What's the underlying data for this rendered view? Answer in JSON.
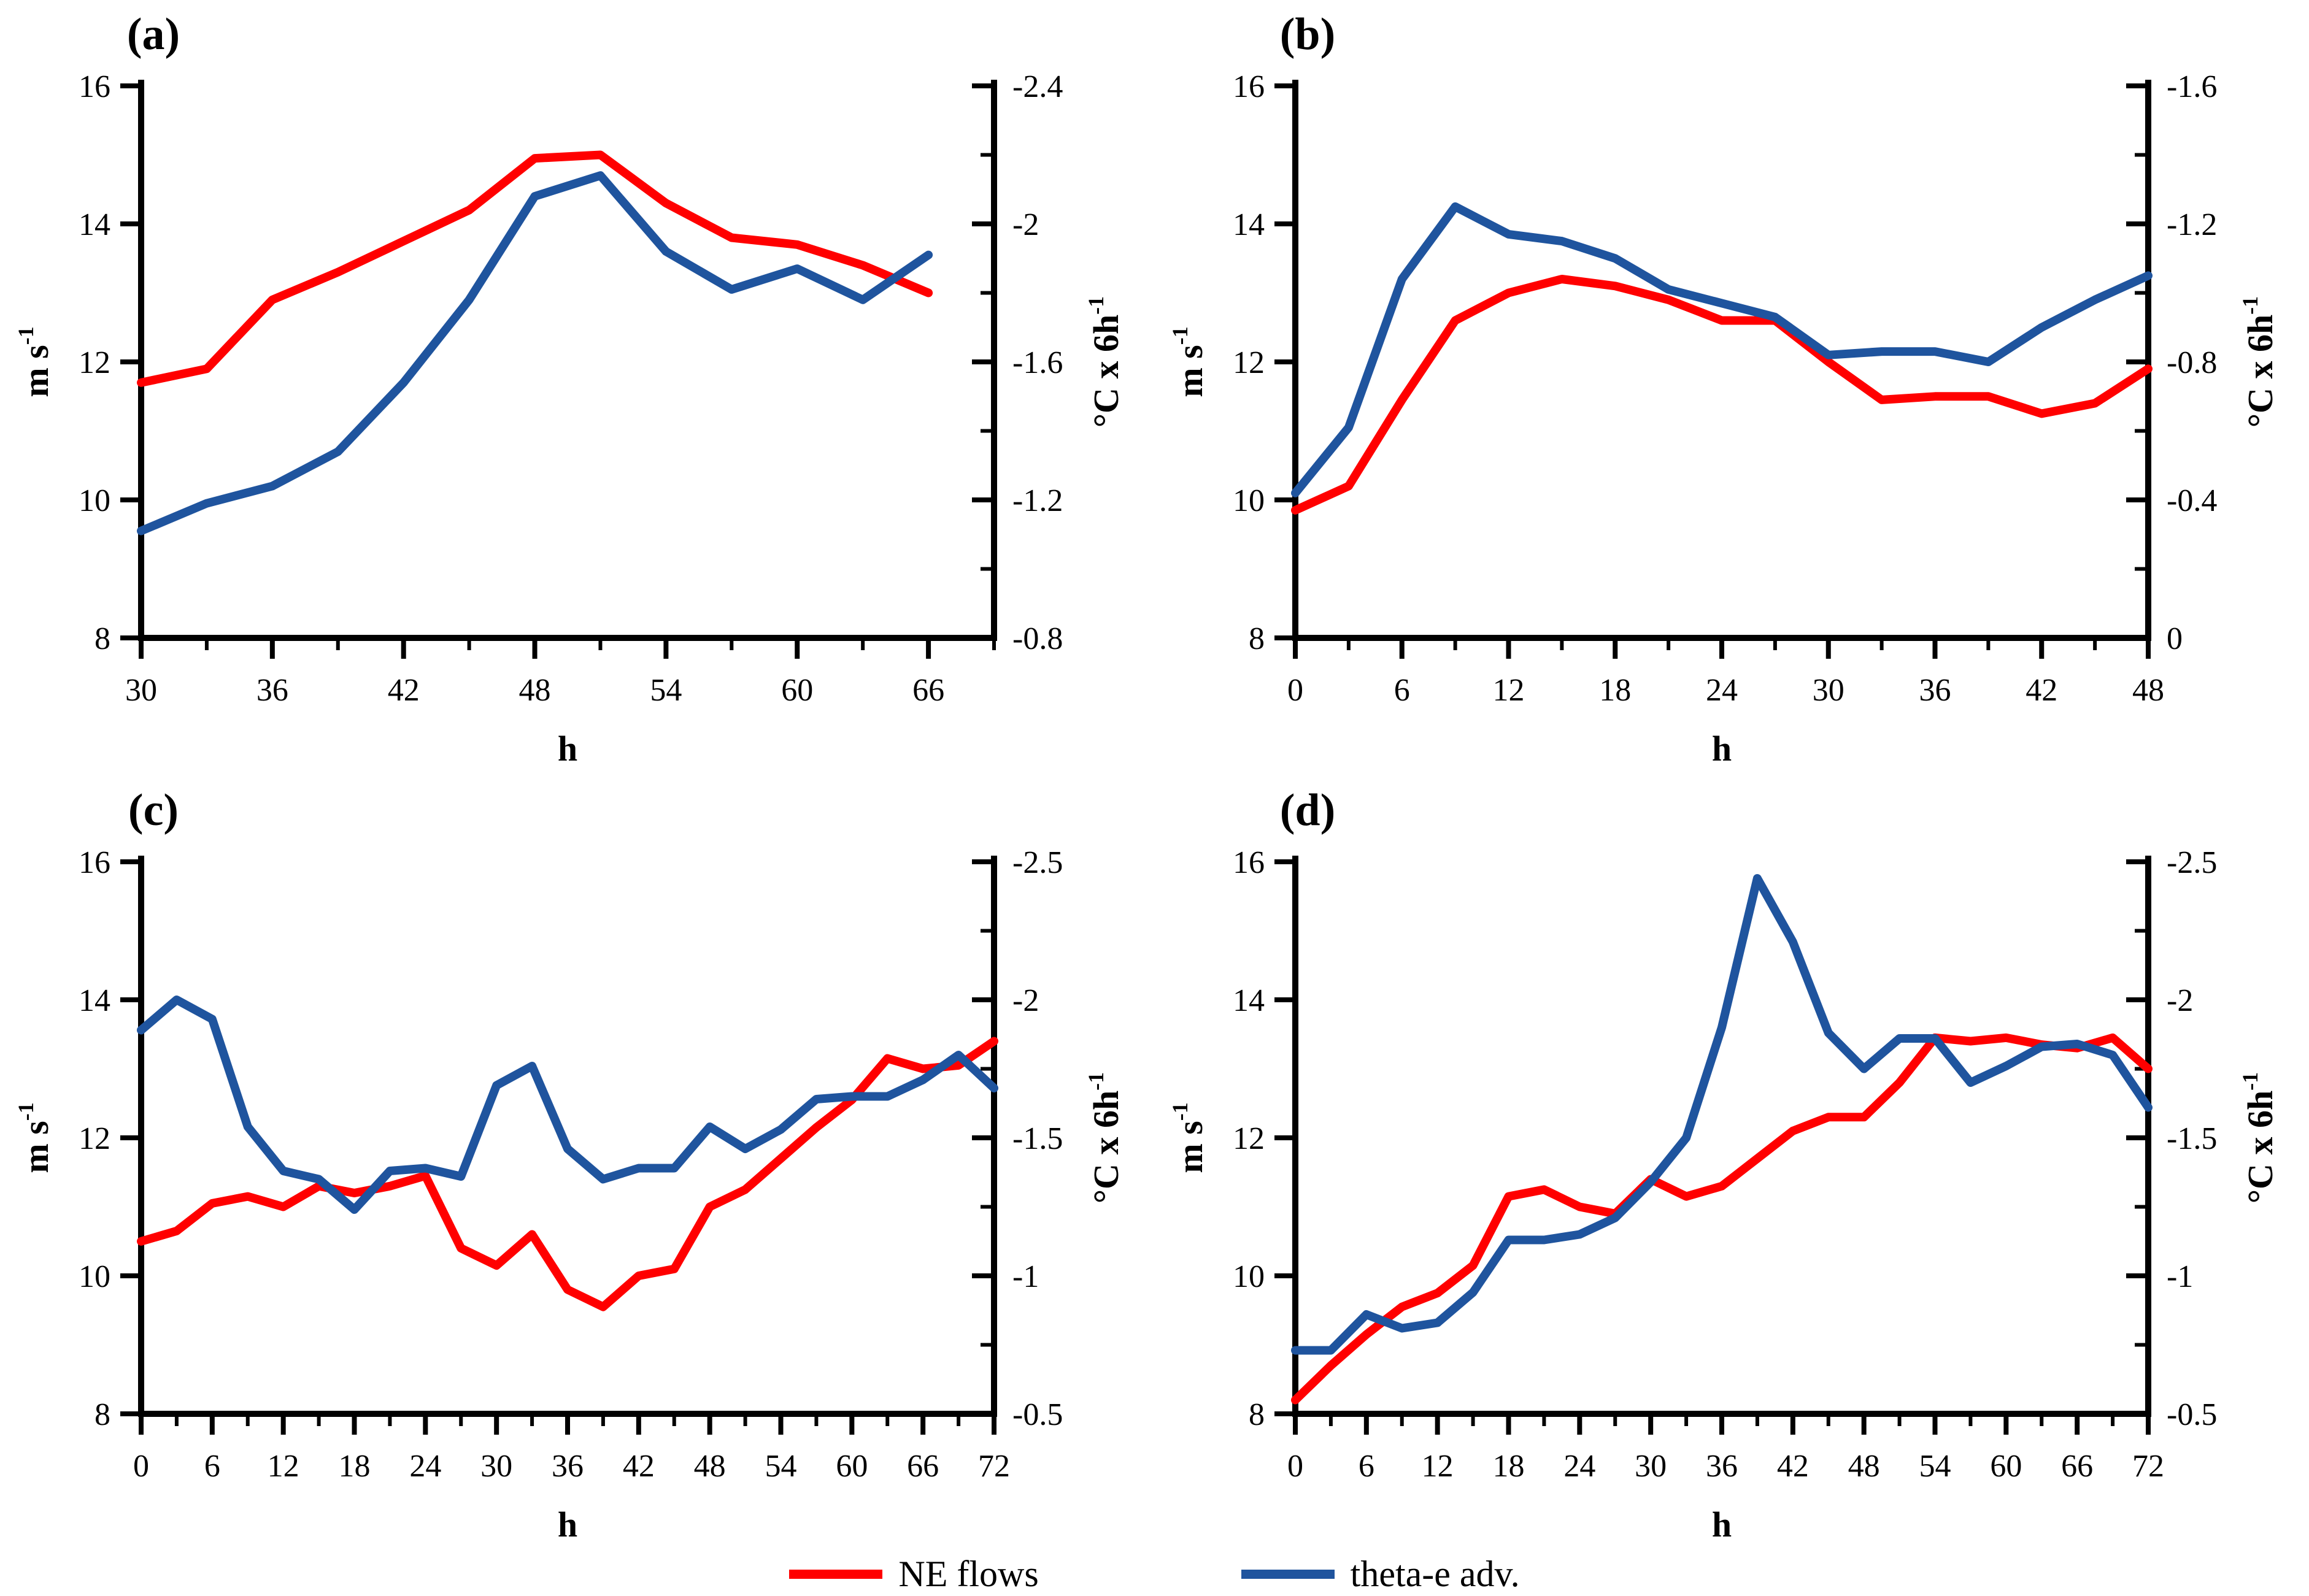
{
  "figure": {
    "colors": {
      "red": "#FF0000",
      "blue": "#1F549E",
      "axis": "#000000"
    },
    "legend": [
      {
        "label": "NE flows",
        "color_key": "red"
      },
      {
        "label": "theta-e adv.",
        "color_key": "blue"
      }
    ]
  },
  "chart_data": [
    {
      "type": "line",
      "panel_label": "(a)",
      "xlabel": "h",
      "x_domain": [
        30,
        69
      ],
      "x": [
        30,
        33,
        36,
        39,
        42,
        45,
        48,
        51,
        54,
        57,
        60,
        63,
        66
      ],
      "x_ticks": {
        "values": [
          30,
          36,
          42,
          48,
          54,
          60,
          66
        ],
        "labels": [
          "30",
          "36",
          "42",
          "48",
          "54",
          "60",
          "66"
        ]
      },
      "left_axis": {
        "label": "m s^-1",
        "domain": [
          8,
          16
        ],
        "ticks": [
          8,
          10,
          12,
          14,
          16
        ],
        "labels": [
          "8",
          "10",
          "12",
          "14",
          "16"
        ]
      },
      "right_axis": {
        "label": "°C x 6h^-1",
        "domain_bottom": -0.8,
        "domain_top": -2.4,
        "ticks": [
          -0.8,
          -1.2,
          -1.6,
          -2,
          -2.4
        ],
        "labels": [
          "-0.8",
          "-1.2",
          "-1.6",
          "-2",
          "-2.4"
        ]
      },
      "series": [
        {
          "name": "NE flows",
          "axis": "left",
          "color_key": "red",
          "values": [
            11.7,
            11.9,
            12.9,
            13.3,
            13.75,
            14.2,
            14.95,
            15.0,
            14.3,
            13.8,
            13.7,
            13.4,
            13.0
          ]
        },
        {
          "name": "theta-e adv.",
          "axis": "right",
          "color_key": "blue",
          "values": [
            -1.11,
            -1.19,
            -1.24,
            -1.34,
            -1.54,
            -1.78,
            -2.08,
            -2.14,
            -1.92,
            -1.81,
            -1.87,
            -1.78,
            -1.91
          ]
        }
      ]
    },
    {
      "type": "line",
      "panel_label": "(b)",
      "xlabel": "h",
      "x_domain": [
        0,
        48
      ],
      "x": [
        0,
        3,
        6,
        9,
        12,
        15,
        18,
        21,
        24,
        27,
        30,
        33,
        36,
        39,
        42,
        45,
        48
      ],
      "x_ticks": {
        "values": [
          0,
          6,
          12,
          18,
          24,
          30,
          36,
          42,
          48
        ],
        "labels": [
          "0",
          "6",
          "12",
          "18",
          "24",
          "30",
          "36",
          "42",
          "48"
        ]
      },
      "left_axis": {
        "label": "m s^-1",
        "domain": [
          8,
          16
        ],
        "ticks": [
          8,
          10,
          12,
          14,
          16
        ],
        "labels": [
          "8",
          "10",
          "12",
          "14",
          "16"
        ]
      },
      "right_axis": {
        "label": "°C x 6h^-1",
        "domain_bottom": 0,
        "domain_top": -1.6,
        "ticks": [
          0,
          -0.4,
          -0.8,
          -1.2,
          -1.6
        ],
        "labels": [
          "0",
          "-0.4",
          "-0.8",
          "-1.2",
          "-1.6"
        ]
      },
      "series": [
        {
          "name": "NE flows",
          "axis": "left",
          "color_key": "red",
          "values": [
            9.85,
            10.2,
            11.45,
            12.6,
            13.0,
            13.2,
            13.1,
            12.9,
            12.6,
            12.6,
            12.0,
            11.45,
            11.5,
            11.5,
            11.25,
            11.4,
            11.9
          ]
        },
        {
          "name": "theta-e adv.",
          "axis": "right",
          "color_key": "blue",
          "values": [
            -0.42,
            -0.61,
            -1.04,
            -1.25,
            -1.17,
            -1.15,
            -1.1,
            -1.01,
            -0.97,
            -0.93,
            -0.82,
            -0.83,
            -0.83,
            -0.8,
            -0.9,
            -0.98,
            -1.05
          ]
        }
      ]
    },
    {
      "type": "line",
      "panel_label": "(c)",
      "xlabel": "h",
      "x_domain": [
        0,
        72
      ],
      "x": [
        0,
        3,
        6,
        9,
        12,
        15,
        18,
        21,
        24,
        27,
        30,
        33,
        36,
        39,
        42,
        45,
        48,
        51,
        54,
        57,
        60,
        63,
        66,
        69,
        72
      ],
      "x_ticks": {
        "values": [
          0,
          6,
          12,
          18,
          24,
          30,
          36,
          42,
          48,
          54,
          60,
          66,
          72
        ],
        "labels": [
          "0",
          "6",
          "12",
          "18",
          "24",
          "30",
          "36",
          "42",
          "48",
          "54",
          "60",
          "66",
          "72"
        ]
      },
      "left_axis": {
        "label": "m s^-1",
        "domain": [
          8,
          16
        ],
        "ticks": [
          8,
          10,
          12,
          14,
          16
        ],
        "labels": [
          "8",
          "10",
          "12",
          "14",
          "16"
        ]
      },
      "right_axis": {
        "label": "°C x 6h^-1",
        "domain_bottom": -0.5,
        "domain_top": -2.5,
        "ticks": [
          -0.5,
          -1,
          -1.5,
          -2,
          -2.5
        ],
        "labels": [
          "-0.5",
          "-1",
          "-1.5",
          "-2",
          "-2.5"
        ]
      },
      "series": [
        {
          "name": "NE flows",
          "axis": "left",
          "color_key": "red",
          "values": [
            10.5,
            10.65,
            11.05,
            11.15,
            11.0,
            11.3,
            11.2,
            11.3,
            11.45,
            10.4,
            10.15,
            10.6,
            9.8,
            9.55,
            10.0,
            10.1,
            11.0,
            11.25,
            11.7,
            12.15,
            12.55,
            13.15,
            13.0,
            13.05,
            13.4
          ]
        },
        {
          "name": "theta-e adv.",
          "axis": "right",
          "color_key": "blue",
          "values": [
            -1.89,
            -2.0,
            -1.93,
            -1.54,
            -1.38,
            -1.35,
            -1.24,
            -1.38,
            -1.39,
            -1.36,
            -1.69,
            -1.76,
            -1.46,
            -1.35,
            -1.39,
            -1.39,
            -1.54,
            -1.46,
            -1.53,
            -1.64,
            -1.65,
            -1.65,
            -1.71,
            -1.8,
            -1.68
          ]
        }
      ]
    },
    {
      "type": "line",
      "panel_label": "(d)",
      "xlabel": "h",
      "x_domain": [
        0,
        72
      ],
      "x": [
        0,
        3,
        6,
        9,
        12,
        15,
        18,
        21,
        24,
        27,
        30,
        33,
        36,
        39,
        42,
        45,
        48,
        51,
        54,
        57,
        60,
        63,
        66,
        69,
        72
      ],
      "x_ticks": {
        "values": [
          0,
          6,
          12,
          18,
          24,
          30,
          36,
          42,
          48,
          54,
          60,
          66,
          72
        ],
        "labels": [
          "0",
          "6",
          "12",
          "18",
          "24",
          "30",
          "36",
          "42",
          "48",
          "54",
          "60",
          "66",
          "72"
        ]
      },
      "left_axis": {
        "label": "m s^-1",
        "domain": [
          8,
          16
        ],
        "ticks": [
          8,
          10,
          12,
          14,
          16
        ],
        "labels": [
          "8",
          "10",
          "12",
          "14",
          "16"
        ]
      },
      "right_axis": {
        "label": "°C x 6h^-1",
        "domain_bottom": -0.5,
        "domain_top": -2.5,
        "ticks": [
          -0.5,
          -1,
          -1.5,
          -2,
          -2.5
        ],
        "labels": [
          "-0.5",
          "-1",
          "-1.5",
          "-2",
          "-2.5"
        ]
      },
      "series": [
        {
          "name": "NE flows",
          "axis": "left",
          "color_key": "red",
          "values": [
            8.2,
            8.7,
            9.15,
            9.55,
            9.75,
            10.15,
            11.15,
            11.25,
            11.0,
            10.9,
            11.4,
            11.15,
            11.3,
            11.7,
            12.1,
            12.3,
            12.3,
            12.8,
            13.45,
            13.4,
            13.45,
            13.35,
            13.3,
            13.45,
            13.0
          ]
        },
        {
          "name": "theta-e adv.",
          "axis": "right",
          "color_key": "blue",
          "values": [
            -0.73,
            -0.73,
            -0.86,
            -0.81,
            -0.83,
            -0.94,
            -1.13,
            -1.13,
            -1.15,
            -1.21,
            -1.34,
            -1.5,
            -1.9,
            -2.44,
            -2.21,
            -1.88,
            -1.75,
            -1.86,
            -1.86,
            -1.7,
            -1.76,
            -1.83,
            -1.84,
            -1.8,
            -1.61
          ]
        }
      ]
    }
  ]
}
